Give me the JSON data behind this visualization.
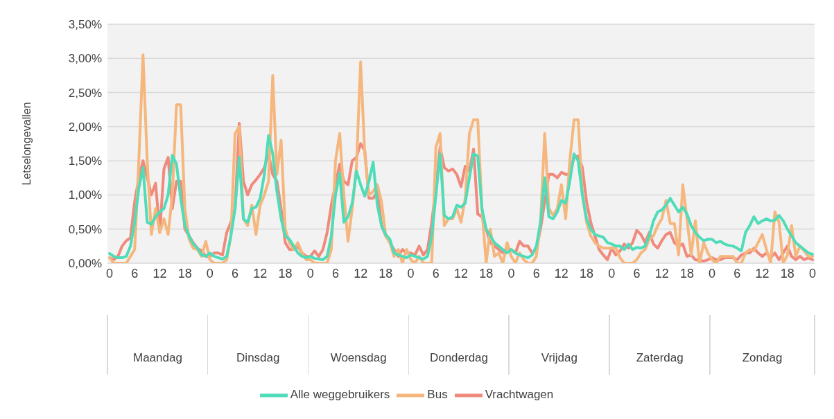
{
  "chart_data": {
    "type": "line",
    "ylabel": "Letselongevallen",
    "categories": [
      "0",
      null,
      null,
      null,
      null,
      null,
      "6",
      null,
      null,
      null,
      null,
      null,
      "12",
      null,
      null,
      null,
      null,
      null,
      "18",
      null,
      null,
      null,
      null,
      null,
      "0",
      null,
      null,
      null,
      null,
      null,
      "6",
      null,
      null,
      null,
      null,
      null,
      "12",
      null,
      null,
      null,
      null,
      null,
      "18",
      null,
      null,
      null,
      null,
      null,
      "0",
      null,
      null,
      null,
      null,
      null,
      "6",
      null,
      null,
      null,
      null,
      null,
      "12",
      null,
      null,
      null,
      null,
      null,
      "18",
      null,
      null,
      null,
      null,
      null,
      "0",
      null,
      null,
      null,
      null,
      null,
      "6",
      null,
      null,
      null,
      null,
      null,
      "12",
      null,
      null,
      null,
      null,
      null,
      "18",
      null,
      null,
      null,
      null,
      null,
      "0",
      null,
      null,
      null,
      null,
      null,
      "6",
      null,
      null,
      null,
      null,
      null,
      "12",
      null,
      null,
      null,
      null,
      null,
      "18",
      null,
      null,
      null,
      null,
      null,
      "0",
      null,
      null,
      null,
      null,
      null,
      "6",
      null,
      null,
      null,
      null,
      null,
      "12",
      null,
      null,
      null,
      null,
      null,
      "18",
      null,
      null,
      null,
      null,
      null,
      "0",
      null,
      null,
      null,
      null,
      null,
      "6",
      null,
      null,
      null,
      null,
      null,
      "12",
      null,
      null,
      null,
      null,
      null,
      "18",
      null,
      null,
      null,
      null,
      null,
      "0"
    ],
    "annotations": [
      "Maandag",
      "Dinsdag",
      "Woensdag",
      "Donderdag",
      "Vrijdag",
      "Zaterdag",
      "Zondag"
    ],
    "series": [
      {
        "name": "Vrachtwagen",
        "color": "#ef8a7c",
        "values": [
          0.08,
          0.05,
          0.1,
          0.25,
          0.33,
          0.37,
          0.9,
          1.25,
          1.5,
          1.25,
          1.0,
          1.17,
          0.45,
          1.38,
          1.55,
          0.8,
          1.2,
          1.2,
          0.5,
          0.4,
          0.3,
          0.22,
          0.18,
          0.1,
          0.1,
          0.15,
          0.15,
          0.12,
          0.45,
          0.6,
          0.8,
          2.05,
          1.2,
          1.0,
          1.15,
          1.22,
          1.3,
          1.4,
          1.6,
          1.3,
          1.2,
          0.8,
          0.3,
          0.2,
          0.2,
          0.25,
          0.15,
          0.1,
          0.1,
          0.18,
          0.1,
          0.2,
          0.45,
          0.85,
          1.15,
          1.45,
          1.2,
          1.15,
          1.5,
          1.55,
          1.75,
          1.65,
          0.95,
          0.95,
          1.05,
          0.55,
          0.4,
          0.3,
          0.2,
          0.1,
          0.2,
          0.15,
          0.15,
          0.12,
          0.25,
          0.12,
          0.2,
          0.6,
          1.1,
          1.7,
          1.4,
          1.35,
          1.38,
          1.3,
          1.12,
          1.42,
          1.35,
          1.67,
          0.72,
          0.68,
          0.5,
          0.3,
          0.25,
          0.2,
          0.15,
          0.22,
          0.2,
          0.15,
          0.32,
          0.25,
          0.25,
          0.15,
          0.2,
          0.5,
          0.9,
          1.3,
          1.3,
          1.25,
          1.33,
          1.3,
          1.3,
          1.55,
          1.57,
          1.4,
          0.9,
          0.6,
          0.4,
          0.2,
          0.12,
          0.05,
          0.22,
          0.12,
          0.18,
          0.28,
          0.22,
          0.3,
          0.48,
          0.42,
          0.3,
          0.45,
          0.28,
          0.22,
          0.33,
          0.42,
          0.45,
          0.3,
          0.25,
          0.28,
          0.1,
          0.12,
          0.05,
          0.04,
          0.03,
          0.05,
          0.08,
          0.05,
          0.05,
          0.08,
          0.08,
          0.08,
          0.05,
          0.12,
          0.15,
          0.15,
          0.22,
          0.15,
          0.1,
          0.15,
          0.08,
          0.15,
          0.05,
          0.15,
          0.25,
          0.1,
          0.05,
          0.1,
          0.05,
          0.08,
          0.05
        ]
      },
      {
        "name": "Bus",
        "color": "#f5b77e",
        "values": [
          0.08,
          0,
          0,
          0,
          0,
          0.1,
          0.2,
          1.5,
          3.05,
          1.5,
          0.42,
          0.8,
          0.45,
          0.65,
          0.42,
          1.0,
          2.32,
          2.32,
          0.8,
          0.35,
          0.22,
          0.2,
          0.1,
          0.32,
          0.05,
          0,
          0,
          0,
          0.05,
          0.4,
          1.9,
          2.0,
          0.65,
          0.55,
          0.85,
          0.42,
          0.85,
          1.0,
          1.2,
          2.75,
          1.3,
          1.8,
          0.5,
          0.3,
          0.2,
          0.3,
          0.15,
          0.05,
          0.05,
          0,
          0,
          0,
          0,
          0.2,
          1.5,
          1.9,
          1.0,
          0.32,
          0.8,
          1.4,
          2.95,
          1.6,
          1.0,
          1.05,
          1.15,
          0.9,
          0.4,
          0.3,
          0.1,
          0.2,
          0,
          0.2,
          0.05,
          0,
          0.1,
          0,
          0,
          0,
          1.7,
          1.9,
          0.55,
          0.65,
          0.65,
          0.8,
          0.6,
          0.95,
          1.9,
          2.1,
          2.1,
          0.8,
          0,
          0.5,
          0.1,
          0.15,
          0,
          0.3,
          0.1,
          0,
          0.15,
          0.05,
          0,
          0,
          0.1,
          0.6,
          1.9,
          0.8,
          0.7,
          0.8,
          1.15,
          0.65,
          1.5,
          2.1,
          2.1,
          1.0,
          0.6,
          0.4,
          0.3,
          0.25,
          0.22,
          0.22,
          0.22,
          0.22,
          0.08,
          0,
          0,
          0,
          0.05,
          0.15,
          0.2,
          0.35,
          0.4,
          0.55,
          0.65,
          0.92,
          0.58,
          0.58,
          0.12,
          1.15,
          0.65,
          0.12,
          0.62,
          0,
          0.3,
          0.15,
          0.05,
          0,
          0.1,
          0.1,
          0.1,
          0.1,
          0,
          0,
          0.15,
          0.2,
          0.18,
          0.3,
          0.42,
          0.2,
          0,
          0.75,
          0.6,
          0,
          0.12,
          0.55,
          0.1,
          0.25,
          0.18,
          0.1,
          0.1
        ]
      },
      {
        "name": "Alle weggebruikers",
        "color": "#4fdcb8",
        "values": [
          0.14,
          0.1,
          0.08,
          0.08,
          0.1,
          0.25,
          0.6,
          1.1,
          1.4,
          0.6,
          0.57,
          0.68,
          0.75,
          0.8,
          1.0,
          1.58,
          1.45,
          0.95,
          0.55,
          0.4,
          0.28,
          0.22,
          0.12,
          0.1,
          0.15,
          0.1,
          0.08,
          0.06,
          0.1,
          0.4,
          0.8,
          1.55,
          0.65,
          0.6,
          0.8,
          0.82,
          0.95,
          1.3,
          1.87,
          1.6,
          1.05,
          0.65,
          0.4,
          0.35,
          0.25,
          0.15,
          0.1,
          0.08,
          0.1,
          0.07,
          0.06,
          0.05,
          0.1,
          0.4,
          1.0,
          1.32,
          0.6,
          0.68,
          0.88,
          1.35,
          1.15,
          0.98,
          1.2,
          1.48,
          0.85,
          0.55,
          0.42,
          0.35,
          0.15,
          0.12,
          0.1,
          0.08,
          0.12,
          0.1,
          0.08,
          0.06,
          0.1,
          0.4,
          1.0,
          1.6,
          0.7,
          0.65,
          0.68,
          0.85,
          0.82,
          0.88,
          1.25,
          1.6,
          1.57,
          0.8,
          0.5,
          0.4,
          0.3,
          0.25,
          0.2,
          0.15,
          0.2,
          0.15,
          0.12,
          0.1,
          0.08,
          0.12,
          0.25,
          0.6,
          1.25,
          0.68,
          0.65,
          0.75,
          0.92,
          0.88,
          1.2,
          1.6,
          1.5,
          1.0,
          0.65,
          0.5,
          0.42,
          0.4,
          0.38,
          0.3,
          0.28,
          0.25,
          0.25,
          0.2,
          0.28,
          0.2,
          0.23,
          0.22,
          0.25,
          0.4,
          0.62,
          0.75,
          0.78,
          0.85,
          0.95,
          0.85,
          0.75,
          0.82,
          0.72,
          0.55,
          0.45,
          0.38,
          0.33,
          0.35,
          0.35,
          0.3,
          0.32,
          0.28,
          0.26,
          0.25,
          0.22,
          0.18,
          0.45,
          0.55,
          0.68,
          0.58,
          0.62,
          0.65,
          0.62,
          0.63,
          0.7,
          0.62,
          0.5,
          0.4,
          0.3,
          0.25,
          0.2,
          0.15,
          0.13
        ]
      }
    ],
    "ylim": [
      0,
      3.5
    ],
    "yticks": [
      {
        "value": 0,
        "label": "0,00%"
      },
      {
        "value": 0.5,
        "label": "0,50%"
      },
      {
        "value": 1,
        "label": "1,00%"
      },
      {
        "value": 1.5,
        "label": "1,50%"
      },
      {
        "value": 2,
        "label": "2,00%"
      },
      {
        "value": 2.5,
        "label": "2,50%"
      },
      {
        "value": 3,
        "label": "3,00%"
      },
      {
        "value": 3.5,
        "label": "3,50%"
      }
    ],
    "grid": "y",
    "legend": "bottom",
    "marker": "none",
    "line_style": "solid"
  }
}
